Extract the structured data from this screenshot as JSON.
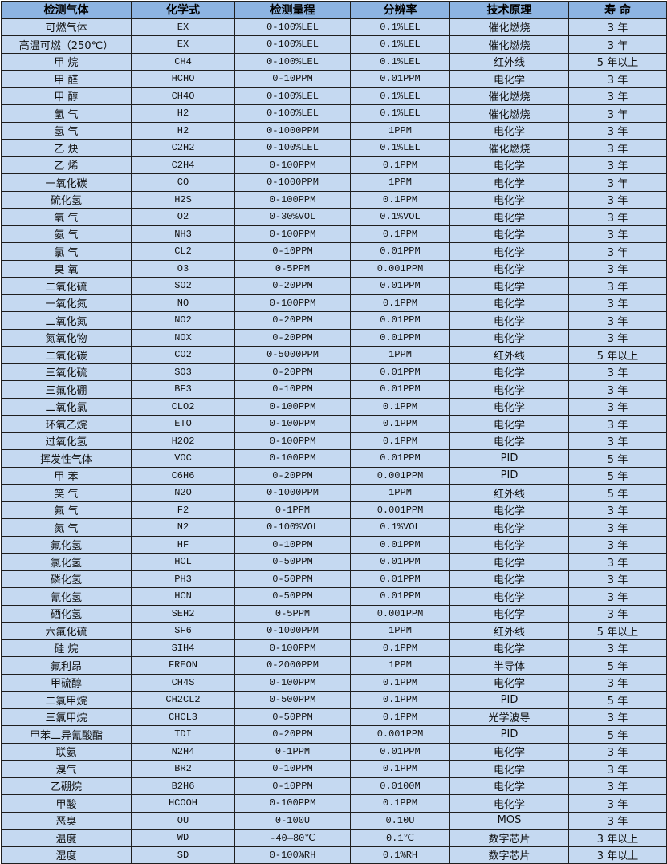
{
  "colors": {
    "header_bg": "#8db4e2",
    "row_bg": "#c5d9f1",
    "border": "#1f1f1f"
  },
  "headers": [
    "检测气体",
    "化学式",
    "检测量程",
    "分辨率",
    "技术原理",
    "寿 命"
  ],
  "rows": [
    [
      "可燃气体",
      "EX",
      "0-100%LEL",
      "0.1%LEL",
      "催化燃烧",
      "3 年"
    ],
    [
      "高温可燃（250℃）",
      "EX",
      "0-100%LEL",
      "0.1%LEL",
      "催化燃烧",
      "3 年"
    ],
    [
      "甲 烷",
      "CH4",
      "0-100%LEL",
      "0.1%LEL",
      "红外线",
      "5 年以上"
    ],
    [
      "甲 醛",
      "HCHO",
      "0-10PPM",
      "0.01PPM",
      "电化学",
      "3 年"
    ],
    [
      "甲 醇",
      "CH4O",
      "0-100%LEL",
      "0.1%LEL",
      "催化燃烧",
      "3 年"
    ],
    [
      "氢 气",
      "H2",
      "0-100%LEL",
      "0.1%LEL",
      "催化燃烧",
      "3 年"
    ],
    [
      "氢 气",
      "H2",
      "0-1000PPM",
      "1PPM",
      "电化学",
      "3 年"
    ],
    [
      "乙 炔",
      "C2H2",
      "0-100%LEL",
      "0.1%LEL",
      "催化燃烧",
      "3 年"
    ],
    [
      "乙 烯",
      "C2H4",
      "0-100PPM",
      "0.1PPM",
      "电化学",
      "3 年"
    ],
    [
      "一氧化碳",
      "CO",
      "0-1000PPM",
      "1PPM",
      "电化学",
      "3 年"
    ],
    [
      "硫化氢",
      "H2S",
      "0-100PPM",
      "0.1PPM",
      "电化学",
      "3 年"
    ],
    [
      "氧 气",
      "O2",
      "0-30%VOL",
      "0.1%VOL",
      "电化学",
      "3 年"
    ],
    [
      "氨 气",
      "NH3",
      "0-100PPM",
      "0.1PPM",
      "电化学",
      "3 年"
    ],
    [
      "氯 气",
      "CL2",
      "0-10PPM",
      "0.01PPM",
      "电化学",
      "3 年"
    ],
    [
      "臭 氧",
      "O3",
      "0-5PPM",
      "0.001PPM",
      "电化学",
      "3 年"
    ],
    [
      "二氧化硫",
      "SO2",
      "0-20PPM",
      "0.01PPM",
      "电化学",
      "3 年"
    ],
    [
      "一氧化氮",
      "NO",
      "0-100PPM",
      "0.1PPM",
      "电化学",
      "3 年"
    ],
    [
      "二氧化氮",
      "NO2",
      "0-20PPM",
      "0.01PPM",
      "电化学",
      "3 年"
    ],
    [
      "氮氧化物",
      "NOX",
      "0-20PPM",
      "0.01PPM",
      "电化学",
      "3 年"
    ],
    [
      "二氧化碳",
      "CO2",
      "0-5000PPM",
      "1PPM",
      "红外线",
      "5 年以上"
    ],
    [
      "三氧化硫",
      "SO3",
      "0-20PPM",
      "0.01PPM",
      "电化学",
      "3 年"
    ],
    [
      "三氟化硼",
      "BF3",
      "0-10PPM",
      "0.01PPM",
      "电化学",
      "3 年"
    ],
    [
      "二氧化氯",
      "CLO2",
      "0-100PPM",
      "0.1PPM",
      "电化学",
      "3 年"
    ],
    [
      "环氧乙烷",
      "ETO",
      "0-100PPM",
      "0.1PPM",
      "电化学",
      "3 年"
    ],
    [
      "过氧化氢",
      "H2O2",
      "0-100PPM",
      "0.1PPM",
      "电化学",
      "3 年"
    ],
    [
      "挥发性气体",
      "VOC",
      "0-100PPM",
      "0.01PPM",
      "PID",
      "5 年"
    ],
    [
      "甲 苯",
      "C6H6",
      "0-20PPM",
      "0.001PPM",
      "PID",
      "5 年"
    ],
    [
      "笑 气",
      "N2O",
      "0-1000PPM",
      "1PPM",
      "红外线",
      "5 年"
    ],
    [
      "氟 气",
      "F2",
      "0-1PPM",
      "0.001PPM",
      "电化学",
      "3 年"
    ],
    [
      "氮 气",
      "N2",
      "0-100%VOL",
      "0.1%VOL",
      "电化学",
      "3 年"
    ],
    [
      "氟化氢",
      "HF",
      "0-10PPM",
      "0.01PPM",
      "电化学",
      "3 年"
    ],
    [
      "氯化氢",
      "HCL",
      "0-50PPM",
      "0.01PPM",
      "电化学",
      "3 年"
    ],
    [
      "磷化氢",
      "PH3",
      "0-50PPM",
      "0.01PPM",
      "电化学",
      "3 年"
    ],
    [
      "氰化氢",
      "HCN",
      "0-50PPM",
      "0.01PPM",
      "电化学",
      "3 年"
    ],
    [
      "硒化氢",
      "SEH2",
      "0-5PPM",
      "0.001PPM",
      "电化学",
      "3 年"
    ],
    [
      "六氟化硫",
      "SF6",
      "0-1000PPM",
      "1PPM",
      "红外线",
      "5 年以上"
    ],
    [
      "硅 烷",
      "SIH4",
      "0-100PPM",
      "0.1PPM",
      "电化学",
      "3 年"
    ],
    [
      "氟利昂",
      "FREON",
      "0-2000PPM",
      "1PPM",
      "半导体",
      "5 年"
    ],
    [
      "甲硫醇",
      "CH4S",
      "0-100PPM",
      "0.1PPM",
      "电化学",
      "3 年"
    ],
    [
      "二氯甲烷",
      "CH2CL2",
      "0-500PPM",
      "0.1PPM",
      "PID",
      "5 年"
    ],
    [
      "三氯甲烷",
      "CHCL3",
      "0-50PPM",
      "0.1PPM",
      "光学波导",
      "3 年"
    ],
    [
      "甲苯二异氰酸酯",
      "TDI",
      "0-20PPM",
      "0.001PPM",
      "PID",
      "5 年"
    ],
    [
      "联氨",
      "N2H4",
      "0-1PPM",
      "0.01PPM",
      "电化学",
      "3 年"
    ],
    [
      "溴气",
      "BR2",
      "0-10PPM",
      "0.1PPM",
      "电化学",
      "3 年"
    ],
    [
      "乙硼烷",
      "B2H6",
      "0-10PPM",
      "0.0100M",
      "电化学",
      "3 年"
    ],
    [
      "甲酸",
      "HCOOH",
      "0-100PPM",
      "0.1PPM",
      "电化学",
      "3 年"
    ],
    [
      "恶臭",
      "OU",
      "0-100U",
      "0.10U",
      "MOS",
      "3 年"
    ],
    [
      "温度",
      "WD",
      "-40—80℃",
      "0.1℃",
      "数字芯片",
      "3 年以上"
    ],
    [
      "湿度",
      "SD",
      "0-100%RH",
      "0.1%RH",
      "数字芯片",
      "3 年以上"
    ]
  ]
}
